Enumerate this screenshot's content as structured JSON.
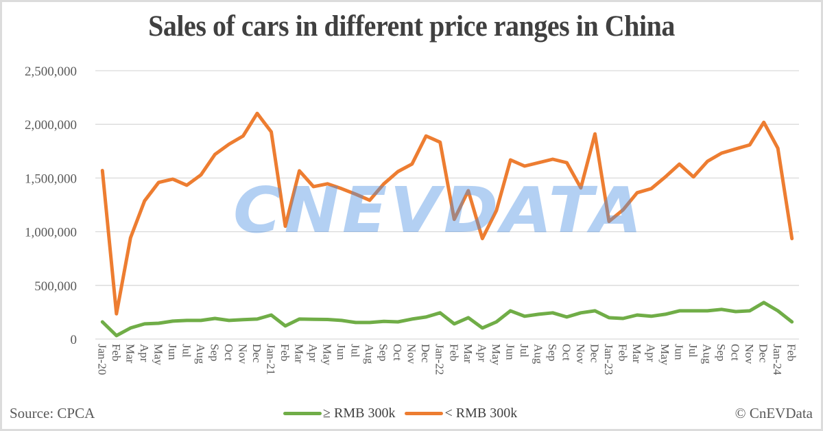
{
  "title": "Sales of cars in different price ranges in China",
  "footer": {
    "source": "Source: CPCA",
    "copyright": "© CnEVData"
  },
  "watermark": "CNEVDATA",
  "colors": {
    "green_series": "#70ad47",
    "orange_series": "#ed7d31",
    "gridline": "#d9d9d9",
    "text": "#595959",
    "watermark": "#4a90e2"
  },
  "chart_data": {
    "type": "line",
    "title": "Sales of cars in different price ranges in China",
    "xlabel": "",
    "ylabel": "",
    "ylim": [
      0,
      2500000
    ],
    "yticks": [
      0,
      500000,
      1000000,
      1500000,
      2000000,
      2500000
    ],
    "ytick_labels": [
      "0",
      "500,000",
      "1,000,000",
      "1,500,000",
      "2,000,000",
      "2,500,000"
    ],
    "grid": true,
    "legend_position": "bottom",
    "categories": [
      "Jan-20",
      "Feb",
      "Mar",
      "Apr",
      "May",
      "Jun",
      "Jul",
      "Aug",
      "Sep",
      "Oct",
      "Nov",
      "Dec",
      "Jan-21",
      "Feb",
      "Mar",
      "Apr",
      "May",
      "Jun",
      "Jul",
      "Aug",
      "Sep",
      "Oct",
      "Nov",
      "Dec",
      "Jan-22",
      "Feb",
      "Mar",
      "Apr",
      "May",
      "Jun",
      "Jul",
      "Aug",
      "Sep",
      "Oct",
      "Nov",
      "Dec",
      "Jan-23",
      "Feb",
      "Mar",
      "Apr",
      "May",
      "Jun",
      "Jul",
      "Aug",
      "Sep",
      "Oct",
      "Nov",
      "Dec",
      "Jan-24",
      "Feb"
    ],
    "series": [
      {
        "name": "≥ RMB 300k",
        "color": "#70ad47",
        "values": [
          160000,
          32000,
          103000,
          141000,
          147000,
          167000,
          173000,
          173000,
          192000,
          173000,
          180000,
          186000,
          224000,
          122000,
          186000,
          184000,
          182000,
          173000,
          154000,
          154000,
          165000,
          160000,
          186000,
          205000,
          244000,
          141000,
          199000,
          103000,
          160000,
          263000,
          212000,
          231000,
          244000,
          205000,
          244000,
          263000,
          199000,
          192000,
          224000,
          212000,
          231000,
          263000,
          263000,
          263000,
          276000,
          256000,
          263000,
          340000,
          263000,
          160000
        ]
      },
      {
        "name": "< RMB 300k",
        "color": "#ed7d31",
        "values": [
          1570000,
          235000,
          943000,
          1287000,
          1459000,
          1490000,
          1433000,
          1529000,
          1720000,
          1815000,
          1892000,
          2102000,
          1930000,
          1051000,
          1567000,
          1420000,
          1446000,
          1401000,
          1350000,
          1293000,
          1446000,
          1560000,
          1630000,
          1892000,
          1834000,
          1115000,
          1382000,
          936000,
          1197000,
          1669000,
          1611000,
          1643000,
          1675000,
          1643000,
          1408000,
          1911000,
          1096000,
          1204000,
          1363000,
          1401000,
          1510000,
          1630000,
          1510000,
          1656000,
          1732000,
          1771000,
          1809000,
          2019000,
          1777000,
          936000
        ]
      }
    ]
  }
}
